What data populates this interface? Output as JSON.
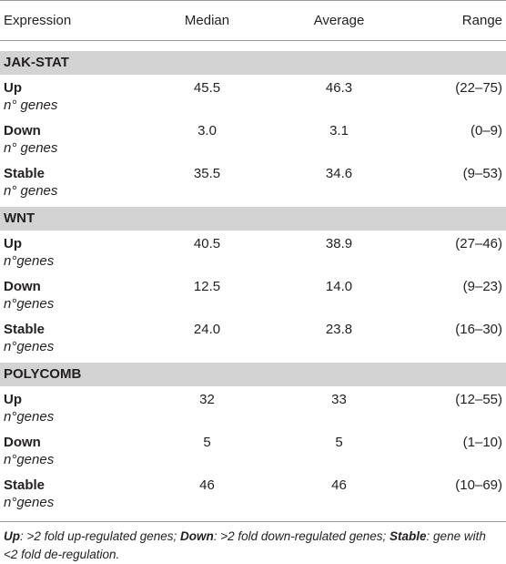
{
  "table": {
    "header": [
      "Expression",
      "Median",
      "Average",
      "Range"
    ],
    "sections": [
      {
        "name": "JAK-STAT",
        "rows": [
          {
            "label": "Up",
            "sub": "n° genes",
            "median": "45.5",
            "average": "46.3",
            "range": "(22–75)"
          },
          {
            "label": "Down",
            "sub": "n° genes",
            "median": "3.0",
            "average": "3.1",
            "range": "(0–9)"
          },
          {
            "label": "Stable",
            "sub": "n° genes",
            "median": "35.5",
            "average": "34.6",
            "range": "(9–53)"
          }
        ]
      },
      {
        "name": "WNT",
        "rows": [
          {
            "label": "Up",
            "sub": "n°genes",
            "median": "40.5",
            "average": "38.9",
            "range": "(27–46)"
          },
          {
            "label": "Down",
            "sub": "n°genes",
            "median": "12.5",
            "average": "14.0",
            "range": "(9–23)"
          },
          {
            "label": "Stable",
            "sub": "n°genes",
            "median": "24.0",
            "average": "23.8",
            "range": "(16–30)"
          }
        ]
      },
      {
        "name": "POLYCOMB",
        "rows": [
          {
            "label": "Up",
            "sub": "n°genes",
            "median": "32",
            "average": "33",
            "range": "(12–55)"
          },
          {
            "label": "Down",
            "sub": "n°genes",
            "median": "5",
            "average": "5",
            "range": "(1–10)"
          },
          {
            "label": "Stable",
            "sub": "n°genes",
            "median": "46",
            "average": "46",
            "range": "(10–69)"
          }
        ]
      }
    ]
  },
  "footnote": [
    {
      "term": "Up",
      "text": ": >2 fold up-regulated genes; "
    },
    {
      "term": "Down",
      "text": ": >2 fold down-regulated genes; "
    },
    {
      "term": "Stable",
      "text": ": gene with <2 fold de-regulation."
    }
  ]
}
